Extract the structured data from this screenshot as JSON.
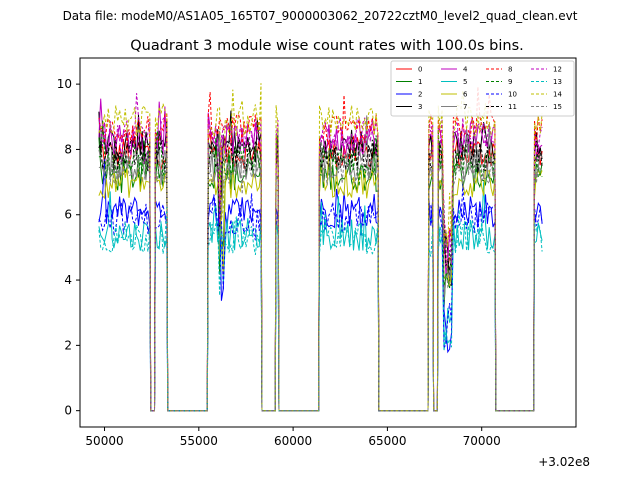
{
  "chart_data": {
    "type": "line",
    "suptitle": "Data file: modeM0/AS1A05_165T07_9000003062_20722cztM0_level2_quad_clean.evt",
    "title": "Quadrant 3 module wise count rates with 100.0s bins.",
    "xlabel": "",
    "ylabel": "",
    "x_offset_label": "+3.02e8",
    "xlim": [
      48700,
      75000
    ],
    "ylim": [
      -0.5,
      10.8
    ],
    "xticks": [
      50000,
      55000,
      60000,
      65000,
      70000
    ],
    "xtick_labels": [
      "50000",
      "55000",
      "60000",
      "65000",
      "70000"
    ],
    "yticks": [
      0,
      2,
      4,
      6,
      8,
      10
    ],
    "ytick_labels": [
      "0",
      "2",
      "4",
      "6",
      "8",
      "10"
    ],
    "legend_position": "upper right",
    "legend_columns": 4,
    "segments": [
      [
        49700,
        52400
      ],
      [
        52700,
        53300
      ],
      [
        55500,
        58300
      ],
      [
        59100,
        59200
      ],
      [
        61400,
        64500
      ],
      [
        67200,
        67400
      ],
      [
        67700,
        70700
      ],
      [
        72800,
        73200
      ]
    ],
    "zero_level": 0,
    "series": [
      {
        "name": "0",
        "color": "#ff0000",
        "dashed": false,
        "baseline": 7.9
      },
      {
        "name": "1",
        "color": "#008000",
        "dashed": false,
        "baseline": 7.2
      },
      {
        "name": "2",
        "color": "#0000ff",
        "dashed": false,
        "baseline": 6.1
      },
      {
        "name": "3",
        "color": "#000000",
        "dashed": false,
        "baseline": 8.1
      },
      {
        "name": "4",
        "color": "#bf00bf",
        "dashed": false,
        "baseline": 8.3
      },
      {
        "name": "5",
        "color": "#00bfbf",
        "dashed": false,
        "baseline": 5.4
      },
      {
        "name": "6",
        "color": "#bfbf00",
        "dashed": false,
        "baseline": 7.0
      },
      {
        "name": "7",
        "color": "#808080",
        "dashed": false,
        "baseline": 7.5
      },
      {
        "name": "8",
        "color": "#ff0000",
        "dashed": true,
        "baseline": 8.6
      },
      {
        "name": "9",
        "color": "#008000",
        "dashed": true,
        "baseline": 7.6
      },
      {
        "name": "10",
        "color": "#0000ff",
        "dashed": true,
        "baseline": 5.9
      },
      {
        "name": "11",
        "color": "#000000",
        "dashed": true,
        "baseline": 7.8
      },
      {
        "name": "12",
        "color": "#bf00bf",
        "dashed": true,
        "baseline": 8.5
      },
      {
        "name": "13",
        "color": "#00bfbf",
        "dashed": true,
        "baseline": 5.3
      },
      {
        "name": "14",
        "color": "#bfbf00",
        "dashed": true,
        "baseline": 8.9
      },
      {
        "name": "15",
        "color": "#808080",
        "dashed": true,
        "baseline": 7.4
      }
    ]
  }
}
